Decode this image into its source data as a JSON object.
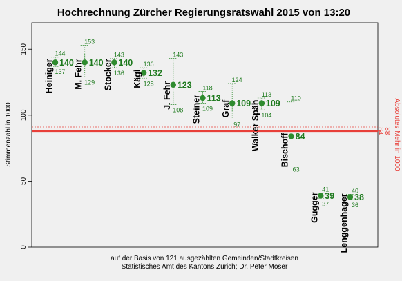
{
  "chart_data": {
    "type": "scatter",
    "title": "Hochrechnung Zürcher Regierungsratswahl 2015 von 13:20",
    "ylabel": "Stimmenzahl in 1000",
    "ylabel_right": "Absolutes Mehr in 1000",
    "ylim": [
      0,
      170
    ],
    "yticks": [
      0,
      50,
      100,
      150
    ],
    "grid": false,
    "candidates": [
      {
        "name": "Heiniger",
        "value": 140,
        "value_label": "140",
        "upper": 144,
        "lower": 137
      },
      {
        "name": "M. Fehr",
        "value": 140,
        "value_label": "140",
        "upper": 153,
        "lower": 129
      },
      {
        "name": "Stocker",
        "value": 140,
        "value_label": "140",
        "upper": 143,
        "lower": 136
      },
      {
        "name": "Kägi",
        "value": 132,
        "value_label": "132",
        "upper": 136,
        "lower": 128
      },
      {
        "name": "J. Fehr",
        "value": 123,
        "value_label": "123",
        "upper": 143,
        "lower": 108
      },
      {
        "name": "Steiner",
        "value": 113,
        "value_label": "113",
        "upper": 118,
        "lower": 109
      },
      {
        "name": "Graf",
        "value": 109,
        "value_label": "109",
        "upper": 124,
        "lower": 97
      },
      {
        "name": "Walker Späh",
        "value": 109,
        "value_label": "109",
        "upper": 113,
        "lower": 104
      },
      {
        "name": "Bischoff",
        "value": 84,
        "value_label": "84",
        "upper": 110,
        "lower": 63
      },
      {
        "name": "Gugger",
        "value": 39,
        "value_label": "39",
        "upper": 41,
        "lower": 37
      },
      {
        "name": "Lenggenhager",
        "value": 38,
        "value_label": "38",
        "upper": 40,
        "lower": 36
      }
    ],
    "absolute_majority": {
      "value": 88,
      "upper": 91,
      "lower": 85,
      "upper_label": "88",
      "lower_label": "84"
    },
    "colors": {
      "point": "#2e8b2e",
      "text_green": "#1e7a1e",
      "majority": "#e8403a",
      "background": "#f0f0f0"
    },
    "footer_lines": [
      "auf der Basis von 121 ausgezählten Gemeinden/Stadtkreisen",
      "Statistisches Amt des Kantons Zürich; Dr. Peter Moser"
    ]
  }
}
